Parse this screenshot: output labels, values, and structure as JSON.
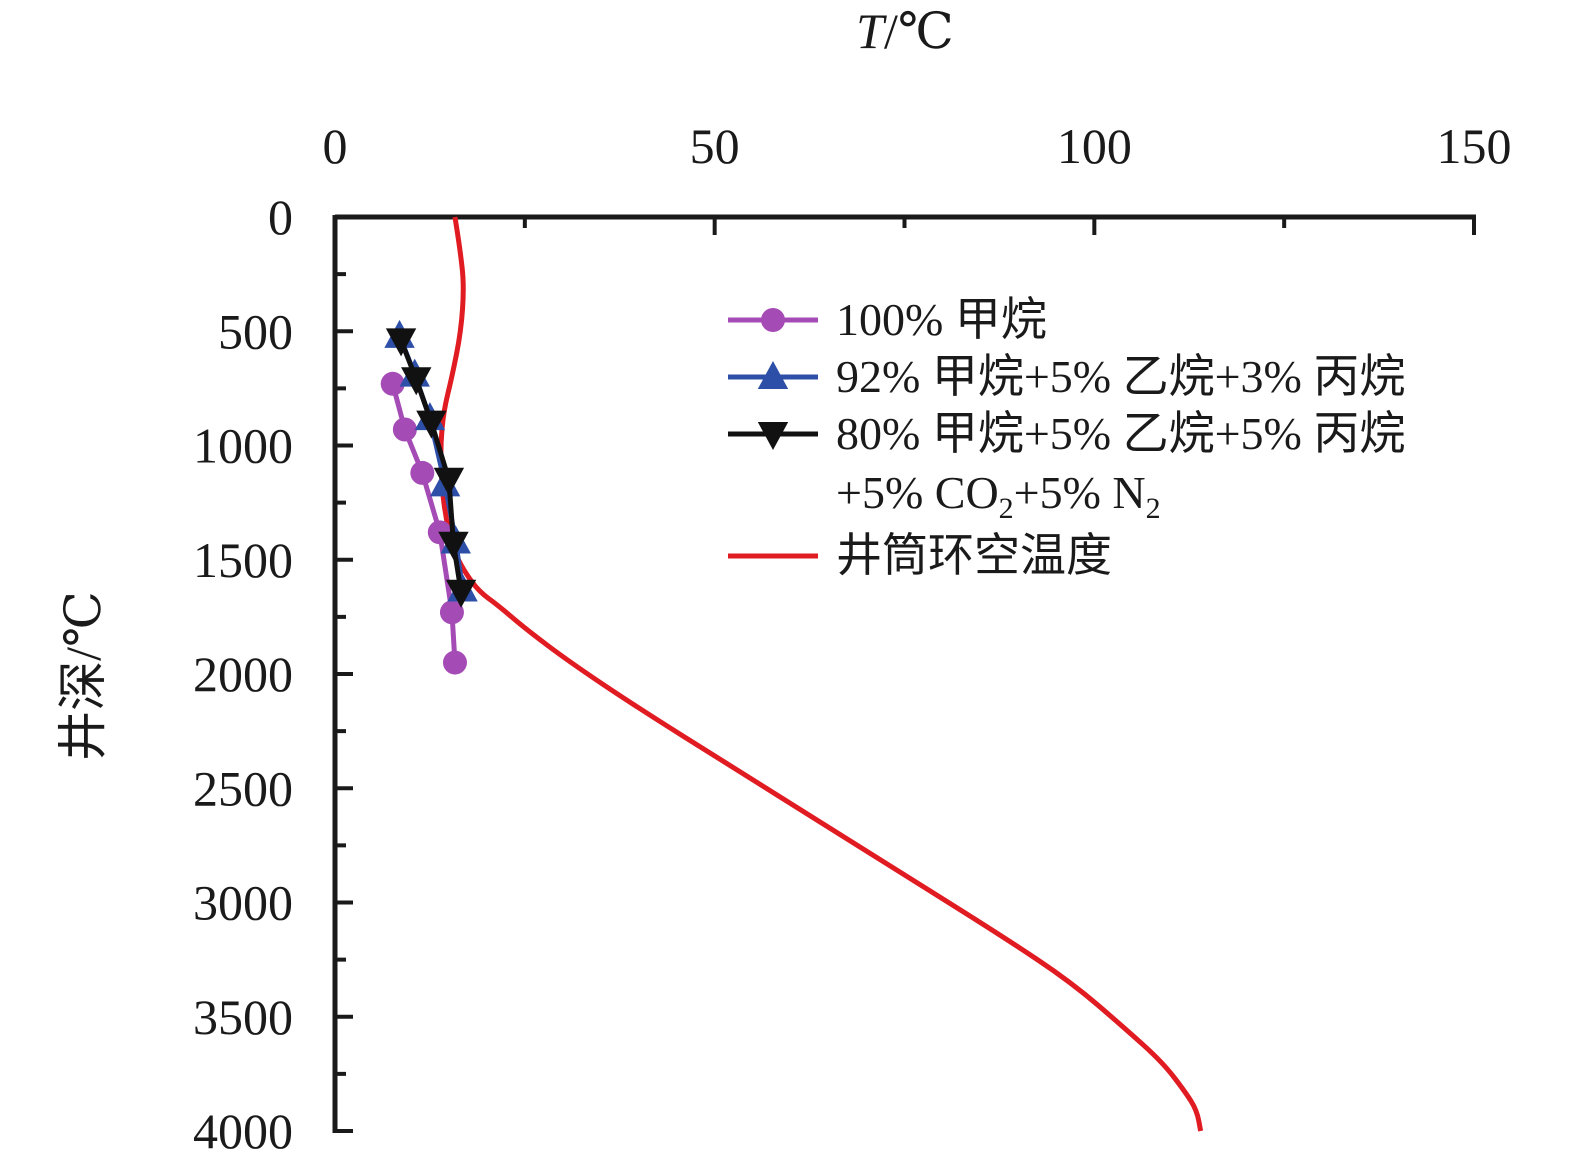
{
  "colors": {
    "axis": "#1a1a1a",
    "methane": "#a54bb5",
    "mix92": "#2e4fa8",
    "mix80": "#111111",
    "annulus": "#e11b22"
  },
  "chart_data": {
    "type": "line",
    "xlabel_italic": "T",
    "xlabel_unit": "/℃",
    "ylabel": "井深/℃",
    "xlim": [
      0,
      150
    ],
    "ylim": [
      4000,
      0
    ],
    "x_ticks": [
      "0",
      "50",
      "100",
      "150"
    ],
    "y_ticks": [
      "0",
      "500",
      "1000",
      "1500",
      "2000",
      "2500",
      "3000",
      "3500",
      "4000"
    ],
    "x_axis_position": "top",
    "y_axis_inverted": true,
    "grid": false,
    "legend_position": "top-right",
    "series": [
      {
        "name": "100% 甲烷",
        "marker": "circle",
        "color_key": "methane",
        "x": [
          7.6,
          9.2,
          11.5,
          13.8,
          15.4,
          15.8
        ],
        "y": [
          730,
          930,
          1120,
          1380,
          1730,
          1950
        ]
      },
      {
        "name": "92% 甲烷+5% 乙烷+3% 丙烷",
        "marker": "triangle-up",
        "color_key": "mix92",
        "x": [
          8.5,
          10.5,
          12.5,
          14.5,
          15.9,
          16.8
        ],
        "y": [
          520,
          690,
          880,
          1170,
          1420,
          1630
        ]
      },
      {
        "name_lines": [
          "80% 甲烷+5% 乙烷+5% 丙烷",
          "+5% CO",
          "2",
          "+5% N",
          "2"
        ],
        "name": "80% 甲烷+5% 乙烷+5% 丙烷+5% CO2+5% N2",
        "marker": "triangle-down",
        "color_key": "mix80",
        "x": [
          8.7,
          10.7,
          12.7,
          15.0,
          15.6,
          16.6
        ],
        "y": [
          540,
          710,
          900,
          1150,
          1430,
          1640
        ]
      },
      {
        "name": "井筒环空温度",
        "marker": "none",
        "color_key": "annulus",
        "x": [
          15.8,
          16.5,
          17.0,
          16.6,
          15.4,
          14.3,
          13.9,
          14.0,
          14.5,
          15.5,
          17.0,
          19.0,
          21.5,
          25.0,
          31.0,
          40.0,
          52.0,
          64.0,
          76.0,
          88.0,
          97.0,
          104.0,
          109.0,
          112.0,
          113.5,
          114.0
        ],
        "y": [
          0,
          150,
          300,
          500,
          700,
          850,
          1000,
          1150,
          1300,
          1450,
          1550,
          1640,
          1700,
          1800,
          1950,
          2150,
          2400,
          2650,
          2900,
          3150,
          3350,
          3550,
          3700,
          3830,
          3910,
          4000
        ]
      }
    ]
  }
}
